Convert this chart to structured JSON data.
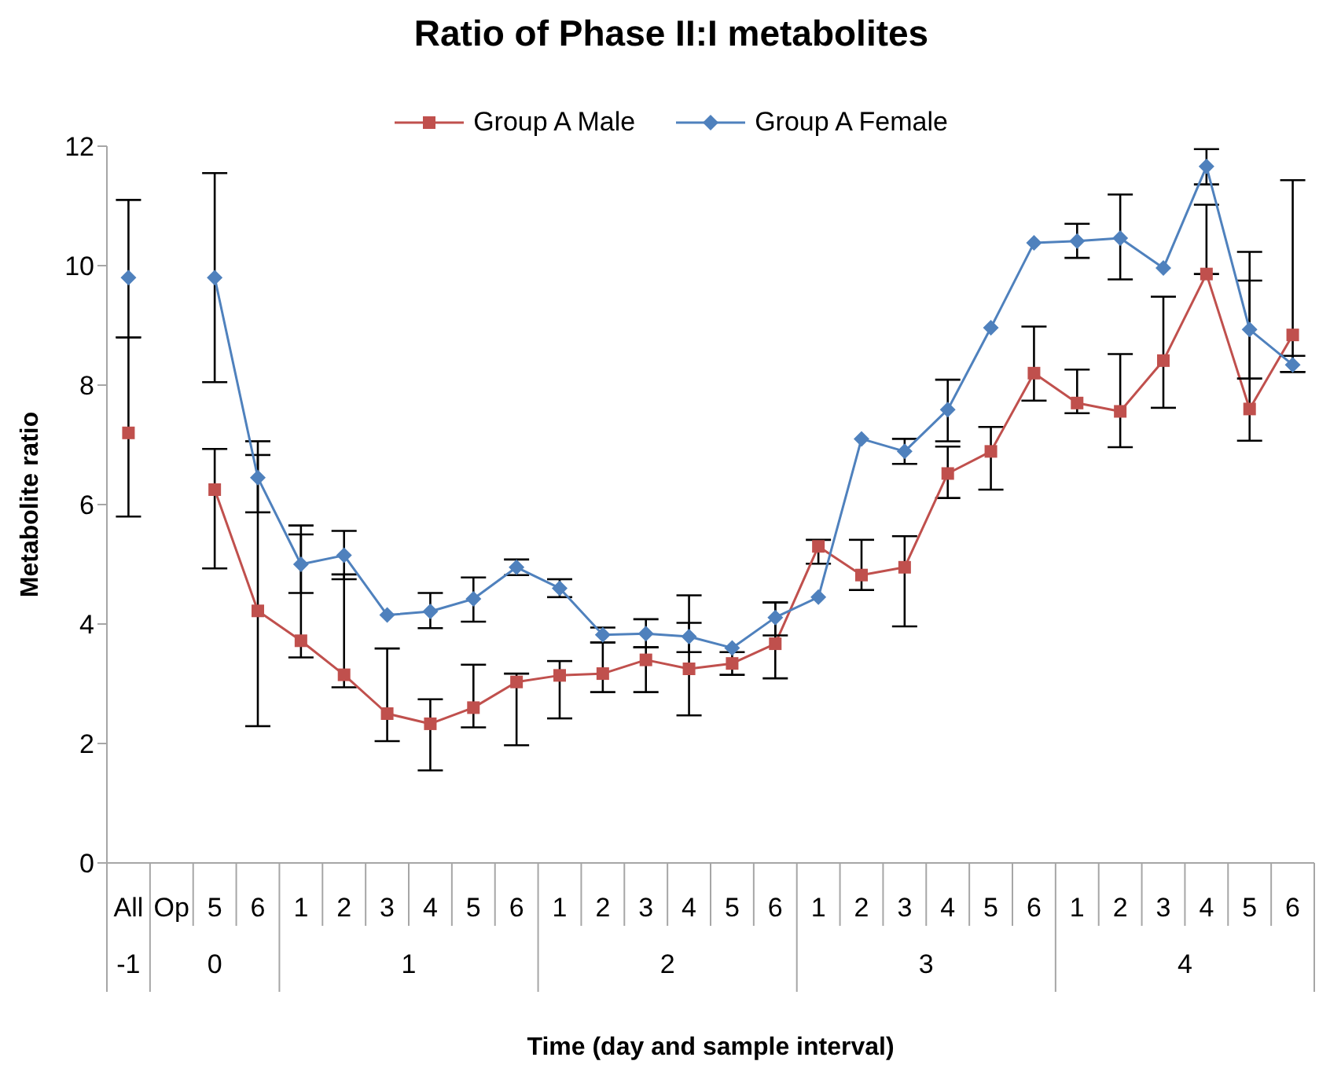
{
  "chart_data": {
    "type": "line",
    "title": "Ratio of Phase II:I metabolites",
    "xlabel": "Time (day and sample interval)",
    "ylabel": "Metabolite ratio",
    "categories": [
      "All",
      "Op",
      "5",
      "6",
      "1",
      "2",
      "3",
      "4",
      "5",
      "6",
      "1",
      "2",
      "3",
      "4",
      "5",
      "6",
      "1",
      "2",
      "3",
      "4",
      "5",
      "6",
      "1",
      "2",
      "3",
      "4",
      "5",
      "6"
    ],
    "annotations": [
      "-1",
      "0",
      "1",
      "2",
      "3",
      "4"
    ],
    "ylim": [
      0,
      12
    ],
    "yticks": [
      0,
      2,
      4,
      6,
      8,
      10,
      12
    ],
    "grid": false,
    "legend": "top",
    "line_style": "solid",
    "series": [
      {
        "name": "Group A Male",
        "color": "#c0504d",
        "marker": "square",
        "values": [
          7.2,
          null,
          6.25,
          4.22,
          3.72,
          3.15,
          2.5,
          2.33,
          2.6,
          3.03,
          3.14,
          3.17,
          3.4,
          3.25,
          3.34,
          3.67,
          5.3,
          4.82,
          4.95,
          6.52,
          6.89,
          8.2,
          7.7,
          7.56,
          8.41,
          9.86,
          7.6,
          8.84
        ],
        "errors": [
          [
            5.8,
            8.8
          ],
          null,
          [
            4.93,
            6.93
          ],
          [
            2.29,
            6.83
          ],
          [
            3.44,
            5.5
          ],
          [
            2.94,
            4.83
          ],
          [
            2.04,
            3.59
          ],
          [
            1.55,
            2.74
          ],
          [
            2.27,
            3.32
          ],
          [
            1.97,
            3.17
          ],
          [
            2.42,
            3.38
          ],
          [
            2.86,
            3.69
          ],
          [
            2.86,
            3.61
          ],
          [
            2.47,
            4.48
          ],
          [
            3.15,
            3.53
          ],
          [
            3.09,
            4.36
          ],
          [
            5.01,
            5.41
          ],
          [
            4.57,
            5.41
          ],
          [
            3.96,
            5.47
          ],
          [
            6.11,
            6.97
          ],
          [
            6.25,
            7.3
          ],
          [
            7.74,
            8.98
          ],
          [
            7.53,
            8.26
          ],
          [
            6.96,
            8.52
          ],
          [
            7.62,
            9.48
          ],
          [
            9.86,
            11.02
          ],
          [
            7.07,
            10.23
          ],
          [
            8.22,
            11.43
          ]
        ]
      },
      {
        "name": "Group A Female",
        "color": "#4f81bd",
        "marker": "diamond",
        "values": [
          9.8,
          null,
          9.8,
          6.45,
          5.0,
          5.15,
          4.15,
          4.21,
          4.42,
          4.95,
          4.6,
          3.82,
          3.84,
          3.79,
          3.6,
          4.11,
          4.45,
          7.1,
          6.89,
          7.59,
          8.96,
          10.38,
          10.41,
          10.46,
          9.96,
          11.66,
          8.93,
          8.34
        ],
        "errors": [
          [
            8.8,
            11.1
          ],
          null,
          [
            8.05,
            11.55
          ],
          [
            5.87,
            7.06
          ],
          [
            4.52,
            5.65
          ],
          [
            4.75,
            5.56
          ],
          null,
          [
            3.93,
            4.52
          ],
          [
            4.04,
            4.78
          ],
          [
            4.82,
            5.08
          ],
          [
            4.45,
            4.75
          ],
          [
            3.69,
            3.94
          ],
          [
            3.61,
            4.08
          ],
          [
            3.53,
            4.02
          ],
          null,
          [
            3.81,
            4.36
          ],
          null,
          null,
          [
            6.68,
            7.1
          ],
          [
            7.06,
            8.09
          ],
          null,
          null,
          [
            10.13,
            10.7
          ],
          [
            9.77,
            11.19
          ],
          null,
          [
            11.36,
            11.95
          ],
          [
            8.11,
            9.75
          ],
          [
            8.22,
            8.49
          ]
        ]
      }
    ]
  }
}
